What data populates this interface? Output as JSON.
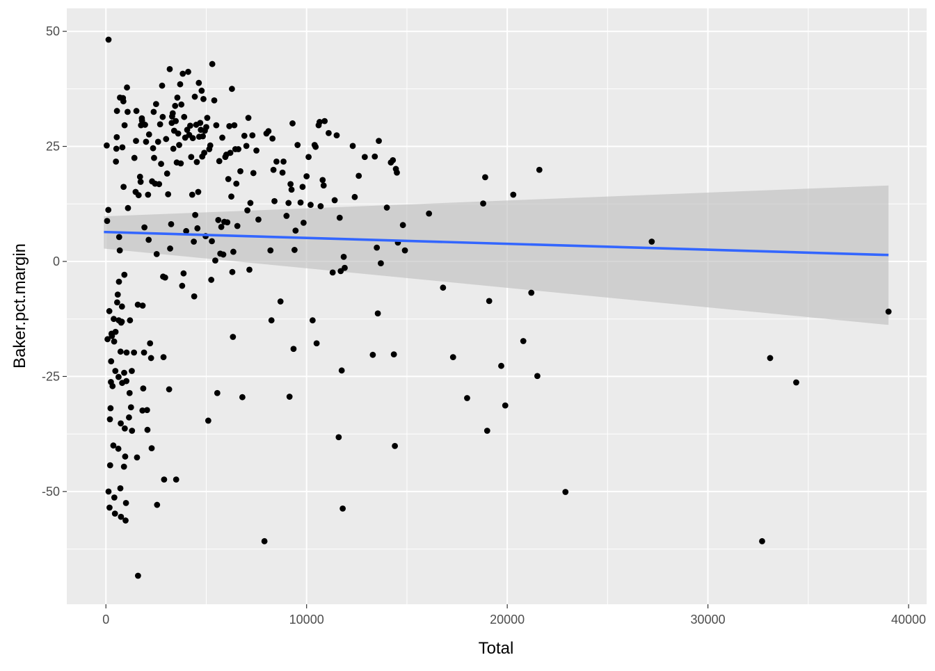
{
  "chart_data": {
    "type": "scatter",
    "title": "",
    "xlabel": "Total",
    "ylabel": "Baker.pct.margin",
    "xlim": [
      -1950,
      40900
    ],
    "ylim": [
      -74.5,
      55
    ],
    "x_ticks": [
      0,
      10000,
      20000,
      30000,
      40000
    ],
    "x_tick_labels": [
      "0",
      "10000",
      "20000",
      "30000",
      "40000"
    ],
    "y_ticks": [
      -50,
      -25,
      0,
      25,
      50
    ],
    "y_tick_labels": [
      "-50",
      "-25",
      "0",
      "25",
      "50"
    ],
    "grid": true,
    "legend": "none",
    "colors": {
      "panel_background": "#ebebeb",
      "grid": "#ffffff",
      "points": "#000000",
      "fit_line": "#3366ff",
      "confidence_band": "#bdbdbd"
    },
    "fit": {
      "method": "linear",
      "x": [
        -100,
        39000
      ],
      "y": [
        6.4,
        1.4
      ],
      "ci_lower": [
        2.8,
        -13.8
      ],
      "ci_upper": [
        9.8,
        16.5
      ]
    },
    "series": [
      {
        "points": [
          [
            40,
            25.2
          ],
          [
            60,
            8.8
          ],
          [
            120,
            11.2
          ],
          [
            130,
            48.2
          ],
          [
            80,
            -16.9
          ],
          [
            170,
            -10.8
          ],
          [
            180,
            -53.5
          ],
          [
            130,
            -50.0
          ],
          [
            200,
            -34.3
          ],
          [
            210,
            -44.3
          ],
          [
            230,
            -31.9
          ],
          [
            250,
            -26.2
          ],
          [
            260,
            -21.7
          ],
          [
            280,
            -15.7
          ],
          [
            300,
            -16.2
          ],
          [
            330,
            -27.1
          ],
          [
            370,
            -40.0
          ],
          [
            390,
            -12.5
          ],
          [
            410,
            -17.4
          ],
          [
            420,
            -51.3
          ],
          [
            450,
            -54.8
          ],
          [
            470,
            -23.8
          ],
          [
            480,
            -15.3
          ],
          [
            500,
            21.7
          ],
          [
            520,
            24.5
          ],
          [
            540,
            27.0
          ],
          [
            550,
            32.7
          ],
          [
            560,
            -8.9
          ],
          [
            590,
            -7.2
          ],
          [
            620,
            -40.7
          ],
          [
            630,
            -25.1
          ],
          [
            640,
            -12.8
          ],
          [
            650,
            -4.4
          ],
          [
            660,
            5.3
          ],
          [
            690,
            2.4
          ],
          [
            700,
            35.6
          ],
          [
            720,
            -49.3
          ],
          [
            730,
            -19.6
          ],
          [
            740,
            -35.2
          ],
          [
            750,
            -55.5
          ],
          [
            760,
            -13.3
          ],
          [
            790,
            -13.1
          ],
          [
            800,
            -9.8
          ],
          [
            810,
            -26.4
          ],
          [
            820,
            24.8
          ],
          [
            850,
            35.5
          ],
          [
            870,
            34.8
          ],
          [
            880,
            16.2
          ],
          [
            900,
            -44.6
          ],
          [
            910,
            -24.2
          ],
          [
            920,
            -2.9
          ],
          [
            930,
            29.6
          ],
          [
            940,
            -36.3
          ],
          [
            960,
            -42.4
          ],
          [
            980,
            -56.3
          ],
          [
            1000,
            -52.5
          ],
          [
            1020,
            -26.0
          ],
          [
            1030,
            -19.8
          ],
          [
            1050,
            37.8
          ],
          [
            1080,
            32.5
          ],
          [
            1100,
            11.6
          ],
          [
            1150,
            -33.9
          ],
          [
            1180,
            -28.6
          ],
          [
            1200,
            -12.8
          ],
          [
            1250,
            -31.7
          ],
          [
            1290,
            -23.8
          ],
          [
            1300,
            -36.8
          ],
          [
            1400,
            -19.8
          ],
          [
            1420,
            22.5
          ],
          [
            1480,
            15.1
          ],
          [
            1500,
            26.2
          ],
          [
            1520,
            32.7
          ],
          [
            1550,
            -42.6
          ],
          [
            1590,
            -9.4
          ],
          [
            1600,
            -68.3
          ],
          [
            1630,
            14.4
          ],
          [
            1700,
            18.4
          ],
          [
            1730,
            17.3
          ],
          [
            1750,
            29.6
          ],
          [
            1790,
            31.1
          ],
          [
            1800,
            30.6
          ],
          [
            1820,
            -32.4
          ],
          [
            1830,
            -9.6
          ],
          [
            1860,
            -27.6
          ],
          [
            1900,
            -19.8
          ],
          [
            1920,
            7.4
          ],
          [
            1950,
            29.7
          ],
          [
            2000,
            26.0
          ],
          [
            2050,
            -32.3
          ],
          [
            2070,
            -36.6
          ],
          [
            2100,
            14.5
          ],
          [
            2130,
            4.7
          ],
          [
            2150,
            27.6
          ],
          [
            2200,
            -17.8
          ],
          [
            2250,
            -21.0
          ],
          [
            2280,
            -40.6
          ],
          [
            2300,
            17.4
          ],
          [
            2350,
            24.6
          ],
          [
            2380,
            32.5
          ],
          [
            2400,
            22.5
          ],
          [
            2450,
            16.9
          ],
          [
            2500,
            34.2
          ],
          [
            2530,
            1.6
          ],
          [
            2550,
            -52.9
          ],
          [
            2600,
            26.0
          ],
          [
            2650,
            16.8
          ],
          [
            2700,
            29.8
          ],
          [
            2750,
            21.2
          ],
          [
            2800,
            38.2
          ],
          [
            2830,
            31.4
          ],
          [
            2850,
            -3.3
          ],
          [
            2870,
            -20.8
          ],
          [
            2900,
            -47.4
          ],
          [
            2950,
            -3.5
          ],
          [
            3000,
            26.6
          ],
          [
            3050,
            19.1
          ],
          [
            3100,
            14.6
          ],
          [
            3150,
            -27.8
          ],
          [
            3180,
            41.8
          ],
          [
            3200,
            2.8
          ],
          [
            3250,
            8.1
          ],
          [
            3280,
            30.1
          ],
          [
            3300,
            31.5
          ],
          [
            3330,
            32.2
          ],
          [
            3360,
            24.5
          ],
          [
            3400,
            28.4
          ],
          [
            3450,
            33.8
          ],
          [
            3480,
            30.5
          ],
          [
            3500,
            -47.4
          ],
          [
            3530,
            21.5
          ],
          [
            3560,
            35.6
          ],
          [
            3600,
            27.8
          ],
          [
            3650,
            25.3
          ],
          [
            3700,
            38.5
          ],
          [
            3730,
            21.3
          ],
          [
            3760,
            34.1
          ],
          [
            3800,
            -5.3
          ],
          [
            3830,
            40.8
          ],
          [
            3870,
            -2.6
          ],
          [
            3900,
            31.4
          ],
          [
            3950,
            26.9
          ],
          [
            4000,
            6.6
          ],
          [
            4050,
            28.6
          ],
          [
            4100,
            41.2
          ],
          [
            4150,
            27.5
          ],
          [
            4200,
            29.5
          ],
          [
            4250,
            22.7
          ],
          [
            4300,
            14.5
          ],
          [
            4330,
            26.8
          ],
          [
            4380,
            4.3
          ],
          [
            4400,
            -7.6
          ],
          [
            4430,
            35.8
          ],
          [
            4450,
            10.1
          ],
          [
            4500,
            29.7
          ],
          [
            4530,
            21.6
          ],
          [
            4560,
            7.2
          ],
          [
            4600,
            15.1
          ],
          [
            4630,
            38.8
          ],
          [
            4650,
            27.1
          ],
          [
            4700,
            30.1
          ],
          [
            4730,
            28.6
          ],
          [
            4770,
            37.1
          ],
          [
            4800,
            22.8
          ],
          [
            4830,
            27.2
          ],
          [
            4860,
            35.3
          ],
          [
            4900,
            23.6
          ],
          [
            4930,
            28.4
          ],
          [
            4970,
            5.5
          ],
          [
            5000,
            29.2
          ],
          [
            5050,
            31.2
          ],
          [
            5100,
            -34.6
          ],
          [
            5150,
            24.4
          ],
          [
            5200,
            25.2
          ],
          [
            5250,
            -4.0
          ],
          [
            5280,
            4.4
          ],
          [
            5300,
            42.9
          ],
          [
            5400,
            35.0
          ],
          [
            5450,
            0.2
          ],
          [
            5500,
            29.6
          ],
          [
            5550,
            -28.6
          ],
          [
            5600,
            9.0
          ],
          [
            5650,
            21.8
          ],
          [
            5700,
            1.7
          ],
          [
            5750,
            7.5
          ],
          [
            5800,
            26.9
          ],
          [
            5850,
            1.5
          ],
          [
            5900,
            8.6
          ],
          [
            5950,
            22.7
          ],
          [
            6000,
            23.2
          ],
          [
            6050,
            8.5
          ],
          [
            6100,
            17.9
          ],
          [
            6150,
            29.4
          ],
          [
            6200,
            23.6
          ],
          [
            6250,
            14.1
          ],
          [
            6280,
            37.5
          ],
          [
            6300,
            -2.3
          ],
          [
            6330,
            -16.4
          ],
          [
            6350,
            2.1
          ],
          [
            6400,
            29.6
          ],
          [
            6450,
            24.4
          ],
          [
            6500,
            16.9
          ],
          [
            6550,
            7.7
          ],
          [
            6600,
            24.4
          ],
          [
            6700,
            19.6
          ],
          [
            6800,
            -29.5
          ],
          [
            6900,
            27.3
          ],
          [
            7000,
            25.1
          ],
          [
            7050,
            11.1
          ],
          [
            7100,
            31.2
          ],
          [
            7150,
            -1.8
          ],
          [
            7200,
            12.7
          ],
          [
            7300,
            27.4
          ],
          [
            7350,
            19.2
          ],
          [
            7500,
            24.1
          ],
          [
            7600,
            9.1
          ],
          [
            7900,
            -60.8
          ],
          [
            8000,
            27.8
          ],
          [
            8100,
            28.3
          ],
          [
            8200,
            2.4
          ],
          [
            8250,
            -12.8
          ],
          [
            8300,
            26.7
          ],
          [
            8350,
            19.9
          ],
          [
            8400,
            13.1
          ],
          [
            8500,
            21.7
          ],
          [
            8700,
            -8.7
          ],
          [
            8800,
            19.3
          ],
          [
            8850,
            21.7
          ],
          [
            9000,
            9.9
          ],
          [
            9100,
            12.7
          ],
          [
            9150,
            -29.4
          ],
          [
            9200,
            16.8
          ],
          [
            9250,
            15.6
          ],
          [
            9300,
            30.0
          ],
          [
            9350,
            -19.0
          ],
          [
            9400,
            2.5
          ],
          [
            9450,
            6.7
          ],
          [
            9550,
            25.3
          ],
          [
            9700,
            12.8
          ],
          [
            9800,
            16.2
          ],
          [
            9850,
            8.4
          ],
          [
            10000,
            18.5
          ],
          [
            10100,
            22.7
          ],
          [
            10200,
            12.3
          ],
          [
            10300,
            -12.8
          ],
          [
            10400,
            25.3
          ],
          [
            10450,
            24.9
          ],
          [
            10500,
            -17.8
          ],
          [
            10600,
            29.6
          ],
          [
            10650,
            30.3
          ],
          [
            10700,
            12.0
          ],
          [
            10800,
            17.7
          ],
          [
            10850,
            16.5
          ],
          [
            10900,
            30.5
          ],
          [
            11100,
            27.9
          ],
          [
            11300,
            -2.4
          ],
          [
            11400,
            13.3
          ],
          [
            11500,
            27.4
          ],
          [
            11600,
            -38.2
          ],
          [
            11650,
            9.5
          ],
          [
            11700,
            -2.1
          ],
          [
            11750,
            -23.7
          ],
          [
            11800,
            -53.7
          ],
          [
            11850,
            1.0
          ],
          [
            11900,
            -1.4
          ],
          [
            12300,
            25.1
          ],
          [
            12400,
            14.0
          ],
          [
            12600,
            18.6
          ],
          [
            12900,
            22.7
          ],
          [
            13300,
            -20.3
          ],
          [
            13400,
            22.8
          ],
          [
            13500,
            3.0
          ],
          [
            13550,
            -11.3
          ],
          [
            13600,
            26.2
          ],
          [
            13700,
            -0.4
          ],
          [
            14000,
            11.7
          ],
          [
            14200,
            21.5
          ],
          [
            14300,
            22.0
          ],
          [
            14350,
            -20.2
          ],
          [
            14400,
            -40.1
          ],
          [
            14450,
            20.1
          ],
          [
            14500,
            19.3
          ],
          [
            14550,
            4.1
          ],
          [
            14800,
            7.9
          ],
          [
            14900,
            2.4
          ],
          [
            16100,
            10.4
          ],
          [
            16800,
            -5.7
          ],
          [
            17300,
            -20.8
          ],
          [
            18000,
            -29.7
          ],
          [
            18800,
            12.6
          ],
          [
            18900,
            18.3
          ],
          [
            19000,
            -36.8
          ],
          [
            19100,
            -8.6
          ],
          [
            19700,
            -22.7
          ],
          [
            19900,
            -31.3
          ],
          [
            20300,
            14.5
          ],
          [
            20800,
            -17.3
          ],
          [
            21200,
            -6.8
          ],
          [
            21500,
            -24.9
          ],
          [
            21600,
            19.9
          ],
          [
            22900,
            -50.1
          ],
          [
            27200,
            4.3
          ],
          [
            32700,
            -60.8
          ],
          [
            33100,
            -21.0
          ],
          [
            34400,
            -26.3
          ],
          [
            39000,
            -10.9
          ]
        ]
      }
    ]
  }
}
